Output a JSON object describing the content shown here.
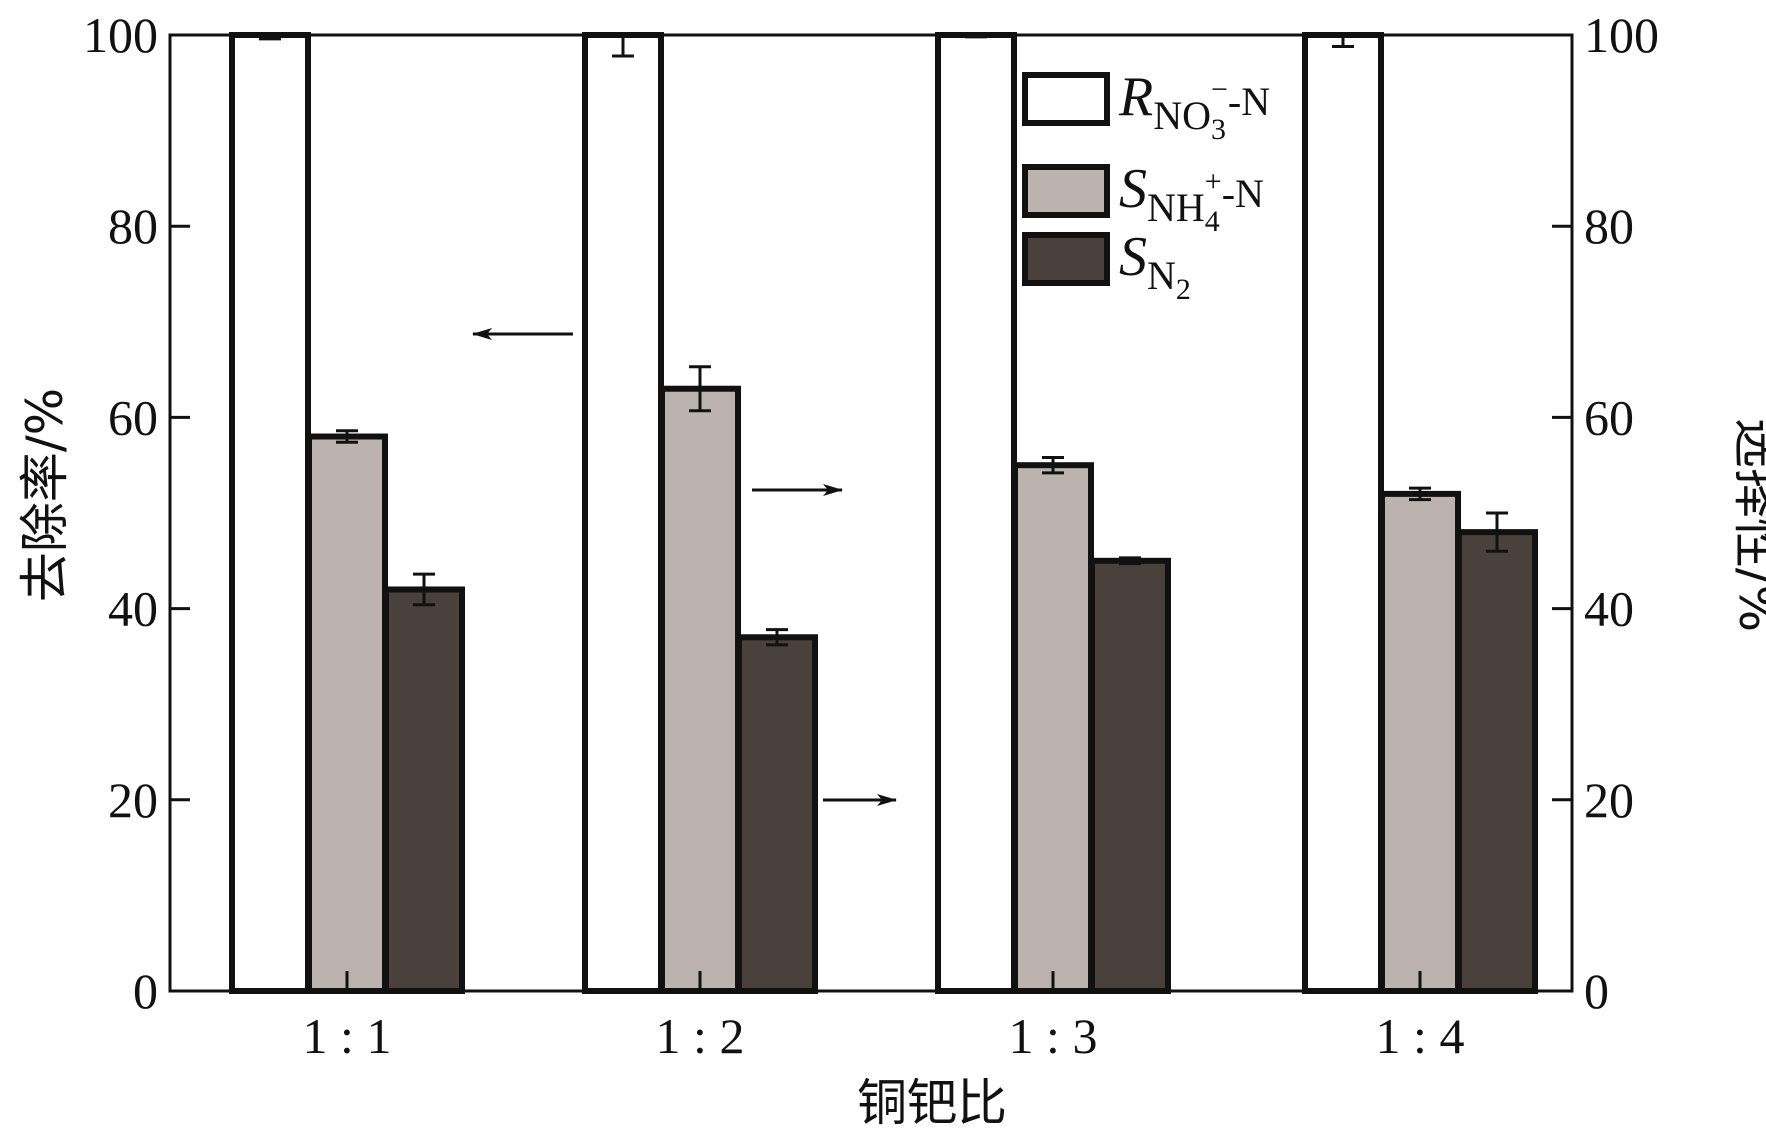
{
  "chart_data": {
    "type": "bar",
    "categories": [
      "1 : 1",
      "1 : 2",
      "1 : 3",
      "1 : 4"
    ],
    "series": [
      {
        "name": "R_NO3--N",
        "axis": "left",
        "color": "#ffffff",
        "values": [
          100,
          100,
          100,
          100
        ],
        "errors": [
          0.4,
          2.2,
          0.2,
          1.2
        ]
      },
      {
        "name": "S_NH4+-N",
        "axis": "right",
        "color": "#bcb3af",
        "values": [
          58,
          63,
          55,
          52
        ],
        "errors": [
          0.6,
          2.3,
          0.8,
          0.6
        ]
      },
      {
        "name": "S_N2",
        "axis": "right",
        "color": "#4a403c",
        "values": [
          42,
          37,
          45,
          48
        ],
        "errors": [
          1.6,
          0.8,
          0.3,
          2.0
        ]
      }
    ],
    "legend": {
      "position": "top-center",
      "entries": [
        {
          "main": "R",
          "sub": "NO",
          "subsub": "3",
          "sup": "−",
          "tail": "-N"
        },
        {
          "main": "S",
          "sub": "NH",
          "subsub": "4",
          "sup": "+",
          "tail": "-N"
        },
        {
          "main": "S",
          "sub": "N",
          "subsub": "2",
          "sup": "",
          "tail": ""
        }
      ]
    },
    "xlabel": "铜钯比",
    "ylabel_left": "去除率/%",
    "ylabel_right": "选择性/%",
    "ylim": [
      0,
      100
    ],
    "yticks": [
      0,
      20,
      40,
      60,
      80,
      100
    ],
    "annotations": [
      {
        "type": "arrow",
        "direction": "left",
        "target_axis": "left"
      },
      {
        "type": "arrow",
        "direction": "right",
        "target_axis": "right"
      },
      {
        "type": "arrow",
        "direction": "right",
        "target_axis": "right"
      }
    ]
  }
}
